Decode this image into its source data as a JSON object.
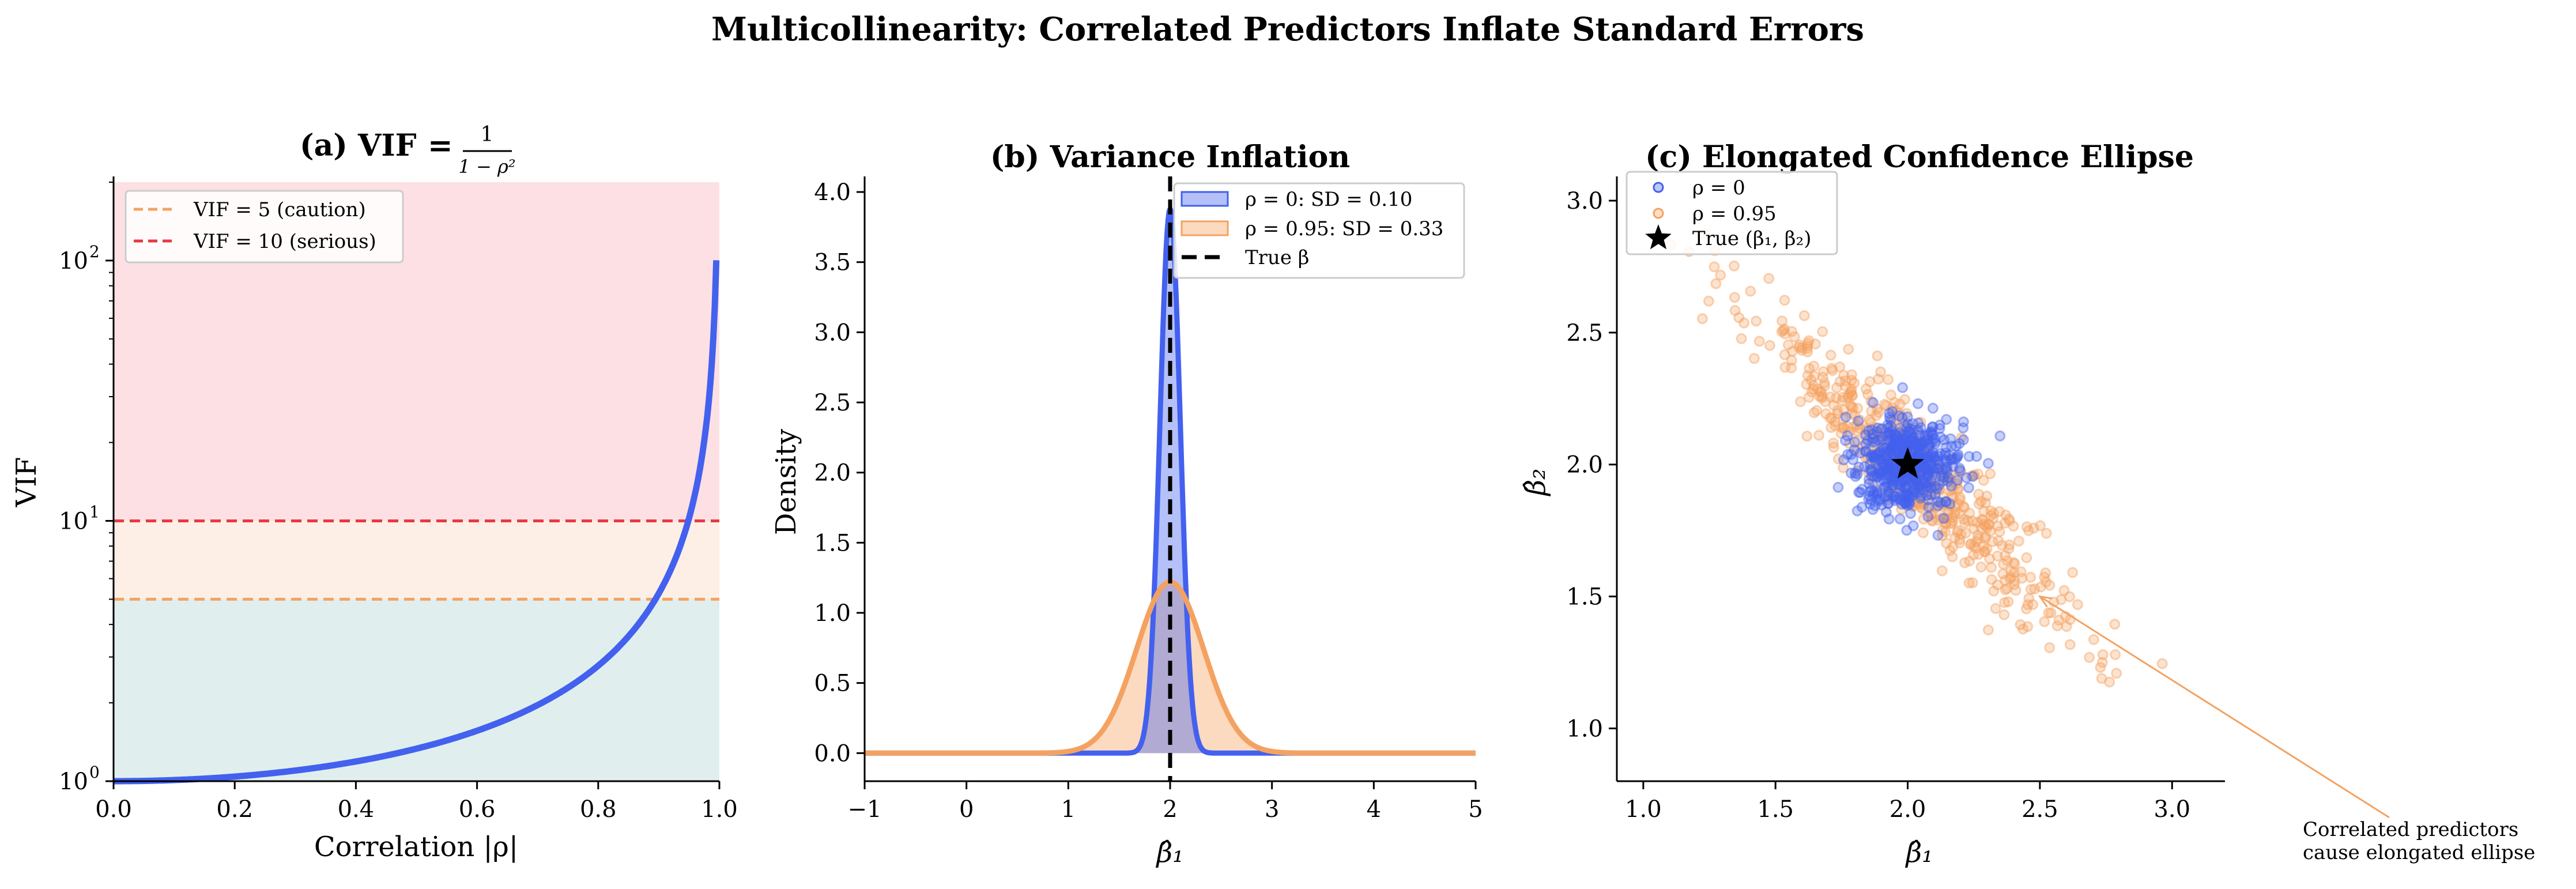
{
  "figure": {
    "suptitle": "Multicollinearity: Correlated Predictors Inflate Standard Errors"
  },
  "colors": {
    "blue": "#4361ee",
    "orange": "#f4a261",
    "red": "#e63946",
    "zone_red": "#fce0e3",
    "zone_orange": "#fdefe5",
    "zone_green": "#e0efee"
  },
  "chart_data": [
    {
      "id": "a",
      "type": "line",
      "title_prefix": "(a) VIF",
      "title_eq": "=",
      "title_frac_num": "1",
      "title_frac_den": "1 − ρ²",
      "xlabel": "Correlation |ρ|",
      "ylabel": "VIF",
      "xlim": [
        0,
        1
      ],
      "ylim": [
        1,
        200
      ],
      "yscale": "log",
      "xticks": [
        0.0,
        0.2,
        0.4,
        0.6,
        0.8,
        1.0
      ],
      "xtick_labels": [
        "0.0",
        "0.2",
        "0.4",
        "0.6",
        "0.8",
        "1.0"
      ],
      "yticks": [
        1,
        10,
        100
      ],
      "ytick_labels": [
        "10",
        "10",
        "10"
      ],
      "ytick_exponents": [
        "0",
        "1",
        "2"
      ],
      "series": [
        {
          "name": "VIF = 1/(1-ρ²)",
          "formula": "1/(1-x^2)",
          "x_range": [
            0,
            0.995
          ],
          "color": "blue"
        }
      ],
      "hlines": [
        {
          "y": 5,
          "label": "VIF = 5 (caution)",
          "color": "orange",
          "style": "dashed"
        },
        {
          "y": 10,
          "label": "VIF = 10 (serious)",
          "color": "red",
          "style": "dashed"
        }
      ],
      "zones": [
        {
          "from": 1,
          "to": 5,
          "color": "zone_green"
        },
        {
          "from": 5,
          "to": 10,
          "color": "zone_orange"
        },
        {
          "from": 10,
          "to": 200,
          "color": "zone_red"
        }
      ],
      "legend": {
        "position": "top-left",
        "entries": [
          "VIF = 5 (caution)",
          "VIF = 10 (serious)"
        ]
      }
    },
    {
      "id": "b",
      "type": "area",
      "title": "(b) Variance Inflation",
      "xlabel": "β̂₁",
      "ylabel": "Density",
      "xlim": [
        -1,
        5
      ],
      "ylim": [
        -0.2,
        4.07
      ],
      "xticks": [
        -1,
        0,
        1,
        2,
        3,
        4,
        5
      ],
      "xtick_labels": [
        "−1",
        "0",
        "1",
        "2",
        "3",
        "4",
        "5"
      ],
      "yticks": [
        0.0,
        0.5,
        1.0,
        1.5,
        2.0,
        2.5,
        3.0,
        3.5,
        4.0
      ],
      "ytick_labels": [
        "0.0",
        "0.5",
        "1.0",
        "1.5",
        "2.0",
        "2.5",
        "3.0",
        "3.5",
        "4.0"
      ],
      "series": [
        {
          "name": "ρ = 0: SD = 0.10",
          "mean": 2.0,
          "sd": 0.1,
          "peak": 3.88,
          "color": "blue"
        },
        {
          "name": "ρ = 0.95: SD = 0.33",
          "mean": 2.0,
          "sd": 0.33,
          "peak": 1.22,
          "color": "orange"
        }
      ],
      "vline": {
        "x": 2.0,
        "label": "True β",
        "style": "dashed",
        "color": "#000000"
      },
      "legend": {
        "position": "top-right",
        "entries": [
          "ρ = 0: SD = 0.10",
          "ρ = 0.95: SD = 0.33",
          "True β"
        ]
      }
    },
    {
      "id": "c",
      "type": "scatter",
      "title": "(c) Elongated Confidence Ellipse",
      "xlabel": "β̂₁",
      "ylabel": "β̂₂",
      "xlim": [
        0.9,
        3.2
      ],
      "ylim": [
        0.8,
        3.07
      ],
      "xticks": [
        1.0,
        1.5,
        2.0,
        2.5,
        3.0
      ],
      "xtick_labels": [
        "1.0",
        "1.5",
        "2.0",
        "2.5",
        "3.0"
      ],
      "yticks": [
        1.0,
        1.5,
        2.0,
        2.5,
        3.0
      ],
      "ytick_labels": [
        "1.0",
        "1.5",
        "2.0",
        "2.5",
        "3.0"
      ],
      "series": [
        {
          "name": "ρ = 0",
          "n": 500,
          "mean": [
            2.0,
            2.0
          ],
          "sd": [
            0.1,
            0.1
          ],
          "corr": 0.0,
          "color": "blue"
        },
        {
          "name": "ρ = 0.95",
          "n": 500,
          "mean": [
            2.0,
            2.0
          ],
          "sd": [
            0.33,
            0.33
          ],
          "corr": -0.95,
          "color": "orange"
        }
      ],
      "marker": {
        "name": "True (β₁, β₂)",
        "x": 2.0,
        "y": 2.0,
        "symbol": "star"
      },
      "annotation": {
        "text_line1": "Correlated predictors",
        "text_line2": "cause elongated ellipse",
        "arrow_to": [
          2.5,
          1.5
        ]
      },
      "legend": {
        "position": "top-left",
        "entries": [
          "ρ = 0",
          "ρ = 0.95",
          "True (β₁, β₂)"
        ]
      }
    }
  ]
}
